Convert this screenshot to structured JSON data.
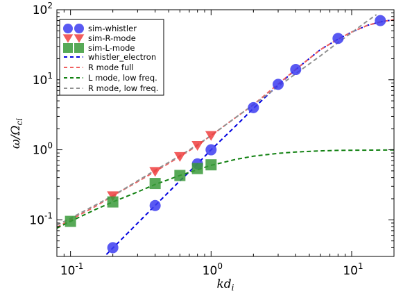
{
  "chart_data": {
    "type": "line",
    "xscale": "log",
    "yscale": "log",
    "xlim": [
      0.08,
      20
    ],
    "ylim": [
      0.03,
      100
    ],
    "xlabel_sym": "kd",
    "xlabel_sub": "i",
    "ylabel_sym": "ω/Ω",
    "ylabel_sub": "ci",
    "grid": false,
    "legend_position": "top-left",
    "xticks": [
      {
        "value": 0.1,
        "base": "10",
        "exp": "-1"
      },
      {
        "value": 1,
        "base": "10",
        "exp": "0"
      },
      {
        "value": 10,
        "base": "10",
        "exp": "1"
      }
    ],
    "yticks": [
      {
        "value": 0.1,
        "base": "10",
        "exp": "-1"
      },
      {
        "value": 1,
        "base": "10",
        "exp": "0"
      },
      {
        "value": 10,
        "base": "10",
        "exp": "1"
      },
      {
        "value": 100,
        "base": "10",
        "exp": "2"
      }
    ],
    "series": [
      {
        "name": "sim-whistler",
        "kind": "marker",
        "marker": "circle",
        "color": "#3c3cf0",
        "x": [
          0.2,
          0.4,
          0.8,
          1.0,
          2.0,
          3.0,
          4.0,
          8.0,
          16.0
        ],
        "y": [
          0.04,
          0.16,
          0.63,
          1.0,
          4.0,
          8.6,
          14.0,
          39,
          70
        ]
      },
      {
        "name": "sim-R-mode",
        "kind": "marker",
        "marker": "triangle-down",
        "color": "#f04040",
        "x": [
          0.2,
          0.4,
          0.6,
          0.8,
          1.0
        ],
        "y": [
          0.22,
          0.49,
          0.8,
          1.15,
          1.6
        ]
      },
      {
        "name": "sim-L-mode",
        "kind": "marker",
        "marker": "square",
        "color": "#3a9a3a",
        "x": [
          0.1,
          0.2,
          0.4,
          0.6,
          0.8,
          1.0
        ],
        "y": [
          0.095,
          0.18,
          0.33,
          0.43,
          0.54,
          0.61
        ]
      },
      {
        "name": "whistler_electron",
        "kind": "line",
        "dash": "dashed",
        "color": "#0000e0",
        "x": [
          0.18,
          0.25,
          0.4,
          0.6,
          0.8,
          1.0,
          1.5,
          2.0,
          3.0,
          4.0,
          6.0,
          8.0,
          10.0,
          13.0,
          16.0,
          20.0
        ],
        "y": [
          0.032,
          0.062,
          0.16,
          0.36,
          0.63,
          1.0,
          2.2,
          3.9,
          8.4,
          14.0,
          27,
          38,
          48,
          60,
          67,
          72
        ]
      },
      {
        "name": "R mode full",
        "kind": "line",
        "dash": "dashed",
        "color": "#f06060",
        "x": [
          0.08,
          0.1,
          0.15,
          0.2,
          0.3,
          0.4,
          0.6,
          0.8,
          1.0,
          1.5,
          2.0,
          3.0,
          4.0,
          6.0,
          8.0,
          10.0,
          13.0,
          16.0,
          20.0
        ],
        "y": [
          0.078,
          0.1,
          0.155,
          0.22,
          0.35,
          0.49,
          0.8,
          1.15,
          1.6,
          2.9,
          4.4,
          8.7,
          14.0,
          27,
          38,
          48,
          60,
          67,
          72
        ]
      },
      {
        "name": "L mode, low freq.",
        "kind": "line",
        "dash": "dashed",
        "color": "#108010",
        "x": [
          0.08,
          0.1,
          0.15,
          0.2,
          0.3,
          0.4,
          0.6,
          0.8,
          1.0,
          1.5,
          2.0,
          3.0,
          4.0,
          6.0,
          8.0,
          10.0,
          15.0,
          20.0
        ],
        "y": [
          0.076,
          0.095,
          0.14,
          0.18,
          0.25,
          0.32,
          0.43,
          0.52,
          0.6,
          0.73,
          0.81,
          0.89,
          0.93,
          0.965,
          0.98,
          0.985,
          0.99,
          0.995
        ]
      },
      {
        "name": "R mode, low freq.",
        "kind": "line",
        "dash": "dashed",
        "color": "#909090",
        "x": [
          0.08,
          0.1,
          0.15,
          0.2,
          0.3,
          0.4,
          0.6,
          0.8,
          1.0,
          1.5,
          2.0,
          3.0,
          4.0,
          6.0,
          8.0,
          10.0,
          12.0,
          15.0
        ],
        "y": [
          0.084,
          0.105,
          0.162,
          0.22,
          0.36,
          0.51,
          0.82,
          1.18,
          1.6,
          2.9,
          4.4,
          8.0,
          12.2,
          22,
          34,
          47,
          62,
          85
        ]
      }
    ]
  }
}
